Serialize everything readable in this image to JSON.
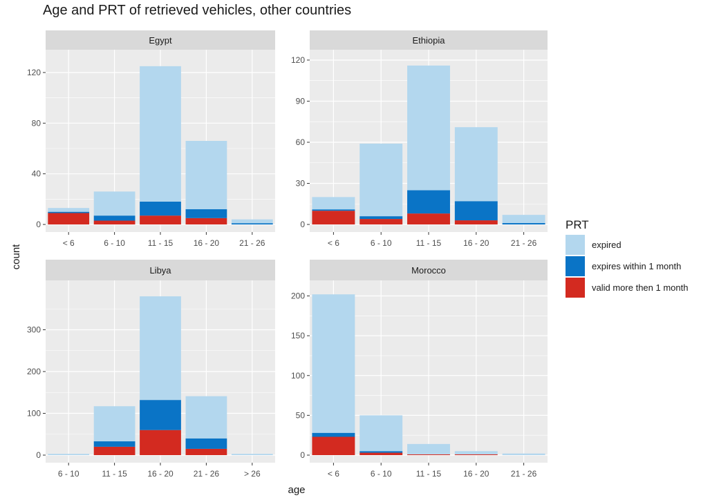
{
  "chart_data": {
    "type": "bar",
    "stacked": true,
    "title": "Age and PRT of retrieved vehicles, other countries",
    "xlabel": "age",
    "ylabel": "count",
    "legend": {
      "title": "PRT",
      "position": "right",
      "entries": [
        {
          "label": "expired",
          "color": "#b3d7ee"
        },
        {
          "label": "expires within 1 month",
          "color": "#0a74c6"
        },
        {
          "label": "valid more then 1 month",
          "color": "#d32a20"
        }
      ]
    },
    "facets": [
      {
        "name": "Egypt",
        "categories": [
          "< 6",
          "6 - 10",
          "11 - 15",
          "16 - 20",
          "21 - 26"
        ],
        "ylim": [
          0,
          132
        ],
        "yticks": [
          0,
          40,
          80,
          120
        ],
        "series": [
          {
            "name": "valid more then 1 month",
            "values": [
              9,
              3,
              7,
              5,
              0
            ]
          },
          {
            "name": "expires within 1 month",
            "values": [
              1,
              4,
              11,
              7,
              1
            ]
          },
          {
            "name": "expired",
            "values": [
              3,
              19,
              107,
              54,
              3
            ]
          }
        ]
      },
      {
        "name": "Ethiopia",
        "categories": [
          "< 6",
          "6 - 10",
          "11 - 15",
          "16 - 20",
          "21 - 26"
        ],
        "ylim": [
          0,
          122
        ],
        "yticks": [
          0,
          30,
          60,
          90,
          120
        ],
        "series": [
          {
            "name": "valid more then 1 month",
            "values": [
              10,
              4,
              8,
              3,
              0
            ]
          },
          {
            "name": "expires within 1 month",
            "values": [
              1,
              2,
              17,
              14,
              1
            ]
          },
          {
            "name": "expired",
            "values": [
              9,
              53,
              91,
              54,
              6
            ]
          }
        ]
      },
      {
        "name": "Libya",
        "categories": [
          "6 - 10",
          "11 - 15",
          "16 - 20",
          "21 - 26",
          "> 26"
        ],
        "ylim": [
          0,
          400
        ],
        "yticks": [
          0,
          100,
          200,
          300
        ],
        "series": [
          {
            "name": "valid more then 1 month",
            "values": [
              0,
              20,
              60,
              15,
              0
            ]
          },
          {
            "name": "expires within 1 month",
            "values": [
              0,
              13,
              72,
              25,
              0
            ]
          },
          {
            "name": "expired",
            "values": [
              3,
              84,
              248,
              101,
              3
            ]
          }
        ]
      },
      {
        "name": "Morocco",
        "categories": [
          "< 6",
          "6 - 10",
          "11 - 15",
          "16 - 20",
          "21 - 26"
        ],
        "ylim": [
          0,
          210
        ],
        "yticks": [
          0,
          50,
          100,
          150,
          200
        ],
        "series": [
          {
            "name": "valid more then 1 month",
            "values": [
              23,
              3,
              1,
              1,
              0
            ]
          },
          {
            "name": "expires within 1 month",
            "values": [
              5,
              2,
              0,
              0,
              0
            ]
          },
          {
            "name": "expired",
            "values": [
              174,
              45,
              13,
              4,
              2
            ]
          }
        ]
      }
    ],
    "grid": true,
    "panel_background": "#ebebeb",
    "strip_background": "#d9d9d9"
  }
}
